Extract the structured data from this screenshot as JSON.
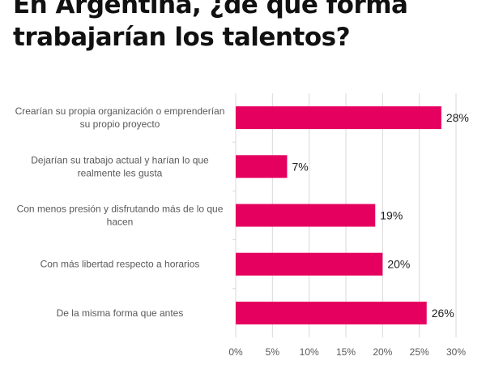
{
  "chart_data": {
    "type": "bar",
    "orientation": "horizontal",
    "title": "En Argentina, ¿de que forma trabajarían los talentos?",
    "title_lines": [
      "En Argentina, ¿de que forma",
      "trabajarían los talentos?"
    ],
    "categories": [
      [
        "Crearían su propia organización o emprenderían",
        "su propio proyecto"
      ],
      [
        "Dejarían su trabajo actual y harían lo que",
        "realmente les gusta"
      ],
      [
        "Con menos presión y disfrutando más de lo que",
        "hacen"
      ],
      [
        "Con más libertad respecto a horarios"
      ],
      [
        "De la misma forma que antes"
      ]
    ],
    "values": [
      28,
      7,
      19,
      20,
      26
    ],
    "data_labels": [
      "28%",
      "7%",
      "19%",
      "20%",
      "26%"
    ],
    "xlim": [
      0,
      30
    ],
    "xticks": [
      0,
      5,
      10,
      15,
      20,
      25,
      30
    ],
    "xtick_labels": [
      "0%",
      "5%",
      "10%",
      "15%",
      "20%",
      "25%",
      "30%"
    ],
    "grid": true,
    "bar_color": "#E5005F",
    "xlabel": "",
    "ylabel": ""
  }
}
